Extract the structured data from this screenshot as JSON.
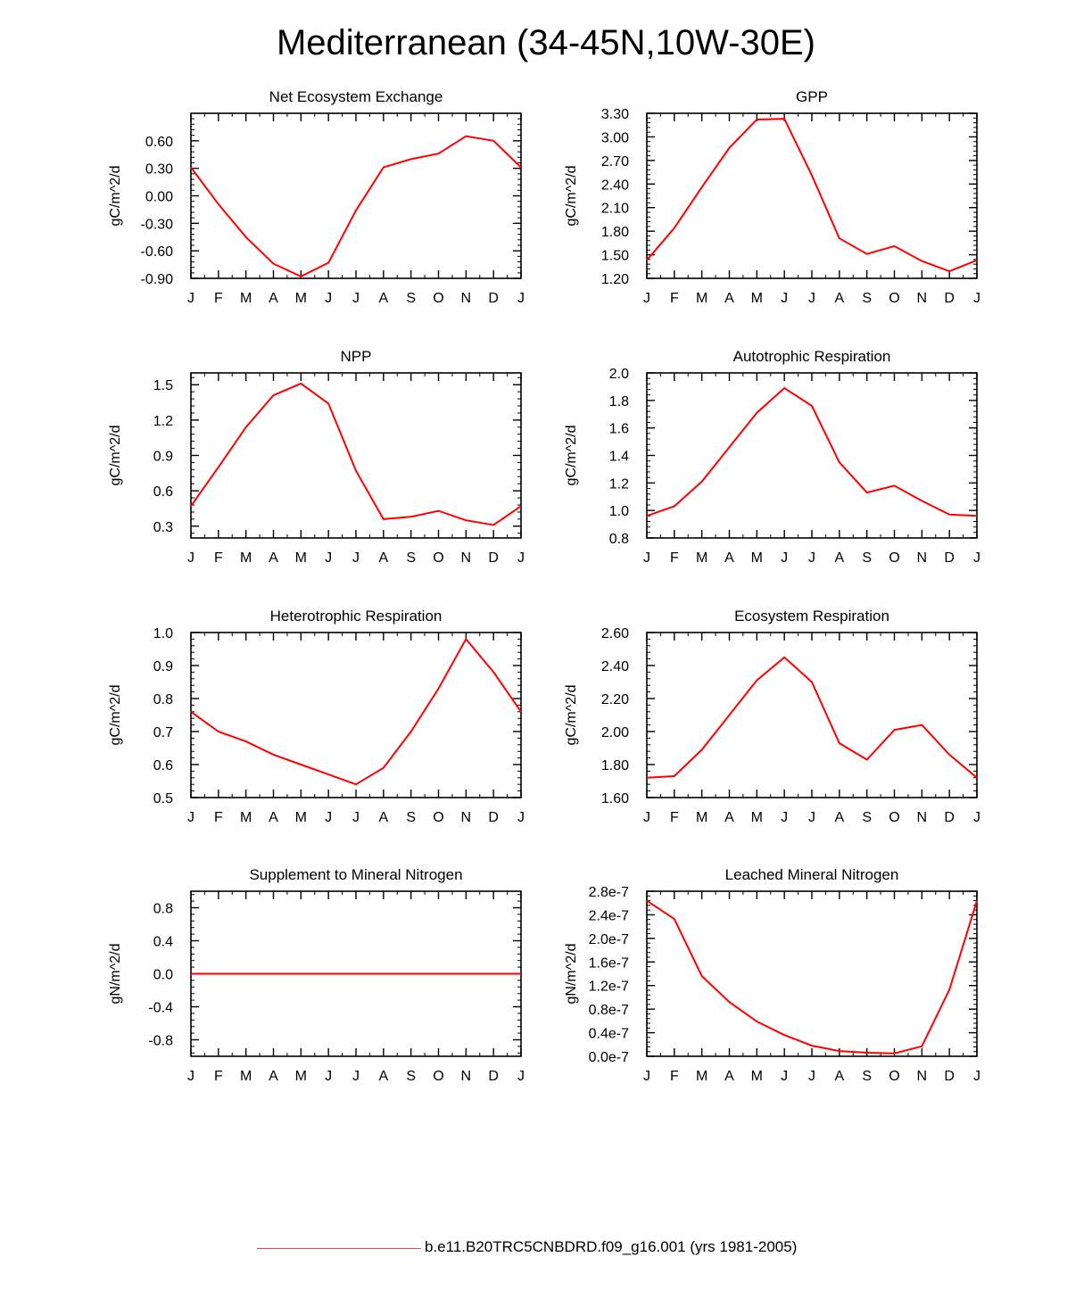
{
  "figure": {
    "title": "Mediterranean (34-45N,10W-30E)",
    "legend": {
      "label": "b.e11.B20TRC5CNBDRD.f09_g16.001 (yrs 1981-2005)",
      "color": "#d8485a"
    },
    "line_color": "#ff0000"
  },
  "chart_data": [
    {
      "type": "line",
      "title": "Net Ecosystem Exchange",
      "ylabel": "gC/m^2/d",
      "x": [
        "J",
        "F",
        "M",
        "A",
        "M",
        "J",
        "J",
        "A",
        "S",
        "O",
        "N",
        "D",
        "J"
      ],
      "ylim": [
        -0.9,
        0.9
      ],
      "yticks": [
        -0.9,
        -0.6,
        -0.3,
        0.0,
        0.3,
        0.6
      ],
      "yticklabels": [
        "-0.90",
        "-0.60",
        "-0.30",
        "0.00",
        "0.30",
        "0.60"
      ],
      "series": [
        {
          "values": [
            0.31,
            -0.09,
            -0.45,
            -0.74,
            -0.88,
            -0.73,
            -0.16,
            0.31,
            0.4,
            0.46,
            0.65,
            0.6,
            0.31
          ]
        }
      ]
    },
    {
      "type": "line",
      "title": "GPP",
      "ylabel": "gC/m^2/d",
      "x": [
        "J",
        "F",
        "M",
        "A",
        "M",
        "J",
        "J",
        "A",
        "S",
        "O",
        "N",
        "D",
        "J"
      ],
      "ylim": [
        1.2,
        3.3
      ],
      "yticks": [
        1.2,
        1.5,
        1.8,
        2.1,
        2.4,
        2.7,
        3.0,
        3.3
      ],
      "yticklabels": [
        "1.20",
        "1.50",
        "1.80",
        "2.10",
        "2.40",
        "2.70",
        "3.00",
        "3.30"
      ],
      "series": [
        {
          "values": [
            1.43,
            1.84,
            2.36,
            2.86,
            3.22,
            3.23,
            2.51,
            1.71,
            1.51,
            1.61,
            1.42,
            1.29,
            1.43
          ]
        }
      ]
    },
    {
      "type": "line",
      "title": "NPP",
      "ylabel": "gC/m^2/d",
      "x": [
        "J",
        "F",
        "M",
        "A",
        "M",
        "J",
        "J",
        "A",
        "S",
        "O",
        "N",
        "D",
        "J"
      ],
      "ylim": [
        0.2,
        1.6
      ],
      "yticks": [
        0.3,
        0.6,
        0.9,
        1.2,
        1.5
      ],
      "yticklabels": [
        "0.3",
        "0.6",
        "0.9",
        "1.2",
        "1.5"
      ],
      "series": [
        {
          "values": [
            0.47,
            0.8,
            1.14,
            1.41,
            1.51,
            1.34,
            0.77,
            0.36,
            0.38,
            0.43,
            0.35,
            0.31,
            0.47
          ]
        }
      ]
    },
    {
      "type": "line",
      "title": "Autotrophic Respiration",
      "ylabel": "gC/m^2/d",
      "x": [
        "J",
        "F",
        "M",
        "A",
        "M",
        "J",
        "J",
        "A",
        "S",
        "O",
        "N",
        "D",
        "J"
      ],
      "ylim": [
        0.8,
        2.0
      ],
      "yticks": [
        0.8,
        1.0,
        1.2,
        1.4,
        1.6,
        1.8,
        2.0
      ],
      "yticklabels": [
        "0.8",
        "1.0",
        "1.2",
        "1.4",
        "1.6",
        "1.8",
        "2.0"
      ],
      "series": [
        {
          "values": [
            0.96,
            1.03,
            1.21,
            1.46,
            1.71,
            1.89,
            1.76,
            1.35,
            1.13,
            1.18,
            1.07,
            0.97,
            0.96
          ]
        }
      ]
    },
    {
      "type": "line",
      "title": "Heterotrophic Respiration",
      "ylabel": "gC/m^2/d",
      "x": [
        "J",
        "F",
        "M",
        "A",
        "M",
        "J",
        "J",
        "A",
        "S",
        "O",
        "N",
        "D",
        "J"
      ],
      "ylim": [
        0.5,
        1.0
      ],
      "yticks": [
        0.5,
        0.6,
        0.7,
        0.8,
        0.9,
        1.0
      ],
      "yticklabels": [
        "0.5",
        "0.6",
        "0.7",
        "0.8",
        "0.9",
        "1.0"
      ],
      "series": [
        {
          "values": [
            0.76,
            0.7,
            0.67,
            0.63,
            0.6,
            0.57,
            0.54,
            0.59,
            0.7,
            0.83,
            0.98,
            0.88,
            0.76
          ]
        }
      ]
    },
    {
      "type": "line",
      "title": "Ecosystem Respiration",
      "ylabel": "gC/m^2/d",
      "x": [
        "J",
        "F",
        "M",
        "A",
        "M",
        "J",
        "J",
        "A",
        "S",
        "O",
        "N",
        "D",
        "J"
      ],
      "ylim": [
        1.6,
        2.6
      ],
      "yticks": [
        1.6,
        1.8,
        2.0,
        2.2,
        2.4,
        2.6
      ],
      "yticklabels": [
        "1.60",
        "1.80",
        "2.00",
        "2.20",
        "2.40",
        "2.60"
      ],
      "series": [
        {
          "values": [
            1.72,
            1.73,
            1.89,
            2.1,
            2.31,
            2.45,
            2.3,
            1.93,
            1.83,
            2.01,
            2.04,
            1.86,
            1.72
          ]
        }
      ]
    },
    {
      "type": "line",
      "title": "Supplement to Mineral Nitrogen",
      "ylabel": "gN/m^2/d",
      "x": [
        "J",
        "F",
        "M",
        "A",
        "M",
        "J",
        "J",
        "A",
        "S",
        "O",
        "N",
        "D",
        "J"
      ],
      "ylim": [
        -1.0,
        1.0
      ],
      "yticks": [
        -0.8,
        -0.4,
        0.0,
        0.4,
        0.8
      ],
      "yticklabels": [
        "-0.8",
        "-0.4",
        "0.0",
        "0.4",
        "0.8"
      ],
      "series": [
        {
          "values": [
            0,
            0,
            0,
            0,
            0,
            0,
            0,
            0,
            0,
            0,
            0,
            0,
            0
          ]
        }
      ]
    },
    {
      "type": "line",
      "title": "Leached Mineral Nitrogen",
      "ylabel": "gN/m^2/d",
      "x": [
        "J",
        "F",
        "M",
        "A",
        "M",
        "J",
        "J",
        "A",
        "S",
        "O",
        "N",
        "D",
        "J"
      ],
      "ylim": [
        0,
        2.8e-07
      ],
      "yticks": [
        0,
        4e-08,
        8e-08,
        1.2e-07,
        1.6e-07,
        2e-07,
        2.4e-07,
        2.8e-07
      ],
      "yticklabels": [
        "0.0e-7",
        "0.4e-7",
        "0.8e-7",
        "1.2e-7",
        "1.6e-7",
        "2.0e-7",
        "2.4e-7",
        "2.8e-7"
      ],
      "series": [
        {
          "values": [
            2.64e-07,
            2.33e-07,
            1.36e-07,
            9.2e-08,
            5.9e-08,
            3.6e-08,
            1.8e-08,
            9e-09,
            6e-09,
            5e-09,
            1.7e-08,
            1.13e-07,
            2.64e-07
          ]
        }
      ]
    }
  ]
}
